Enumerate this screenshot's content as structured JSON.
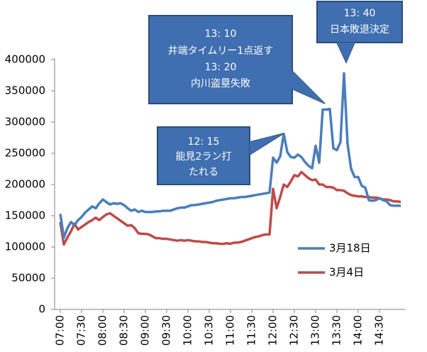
{
  "chart_data": {
    "type": "line",
    "categories": [
      "07:00",
      null,
      null,
      null,
      null,
      null,
      "07:30",
      null,
      null,
      null,
      null,
      null,
      "08:00",
      null,
      null,
      null,
      null,
      null,
      "08:30",
      null,
      null,
      null,
      null,
      null,
      "09:00",
      null,
      null,
      null,
      null,
      null,
      "09:30",
      null,
      null,
      null,
      null,
      null,
      "10:00",
      null,
      null,
      null,
      null,
      null,
      "10:30",
      null,
      null,
      null,
      null,
      null,
      "11:00",
      null,
      null,
      null,
      null,
      null,
      "11:30",
      null,
      null,
      null,
      null,
      null,
      "12:00",
      null,
      null,
      null,
      null,
      null,
      "12:30",
      null,
      null,
      null,
      null,
      null,
      "13:00",
      null,
      null,
      null,
      null,
      null,
      "13:30",
      null,
      null,
      null,
      null,
      null,
      "14:00",
      null,
      null,
      null,
      null,
      null,
      "14:30",
      null,
      null,
      null,
      null,
      null,
      null
    ],
    "series": [
      {
        "name": "3月18日",
        "color": "#4a7ebb",
        "values": [
          153000,
          115000,
          130000,
          140000,
          135000,
          143000,
          148000,
          155000,
          160000,
          165000,
          162000,
          170000,
          176000,
          172000,
          168000,
          170000,
          169000,
          170000,
          167000,
          162000,
          158000,
          160000,
          156000,
          158000,
          156000,
          156000,
          156000,
          157000,
          157000,
          158000,
          158000,
          158000,
          160000,
          162000,
          163000,
          163000,
          165000,
          167000,
          167000,
          168000,
          169000,
          170000,
          171000,
          172000,
          174000,
          175000,
          176000,
          177000,
          178000,
          178000,
          179000,
          180000,
          180000,
          181000,
          182000,
          183000,
          184000,
          185000,
          186000,
          187000,
          243000,
          235000,
          245000,
          281000,
          252000,
          244000,
          243000,
          248000,
          244000,
          236000,
          230000,
          226000,
          262000,
          235000,
          320000,
          320000,
          321000,
          258000,
          255000,
          268000,
          378000,
          265000,
          225000,
          212000,
          212000,
          198000,
          195000,
          175000,
          174000,
          175000,
          178000,
          175000,
          173000,
          167000,
          166000,
          166000,
          166000
        ]
      },
      {
        "name": "3月4日",
        "color": "#be4b48",
        "values": [
          140000,
          104000,
          115000,
          125000,
          137000,
          128000,
          132000,
          136000,
          140000,
          143000,
          147000,
          143000,
          148000,
          152000,
          154000,
          150000,
          146000,
          142000,
          138000,
          134000,
          135000,
          130000,
          122000,
          121000,
          121000,
          120000,
          117000,
          114000,
          114000,
          113000,
          113000,
          112000,
          111000,
          110000,
          111000,
          110000,
          111000,
          110000,
          109000,
          109000,
          108000,
          108000,
          107000,
          106000,
          106000,
          105000,
          105000,
          106000,
          105000,
          107000,
          107000,
          108000,
          110000,
          112000,
          114000,
          116000,
          117000,
          119000,
          120000,
          120000,
          193000,
          162000,
          180000,
          200000,
          196000,
          205000,
          215000,
          213000,
          220000,
          215000,
          210000,
          207000,
          208000,
          200000,
          200000,
          196000,
          196000,
          195000,
          191000,
          191000,
          190000,
          186000,
          183000,
          182000,
          181000,
          181000,
          180000,
          180000,
          179000,
          179000,
          178000,
          176000,
          176000,
          175000,
          173000,
          173000,
          172000
        ]
      }
    ],
    "ylim": [
      0,
      400000
    ],
    "yticks": [
      0,
      50000,
      100000,
      150000,
      200000,
      250000,
      300000,
      350000,
      400000
    ],
    "annotations": [
      {
        "lines": [
          "13: 10",
          "井端タイムリー1点返す",
          "13: 20",
          "内川盗塁失敗"
        ]
      },
      {
        "lines": [
          "12: 15",
          "能見2ラン打",
          "たれる"
        ]
      },
      {
        "lines": [
          "13: 40",
          "日本敗退決定"
        ]
      }
    ]
  }
}
